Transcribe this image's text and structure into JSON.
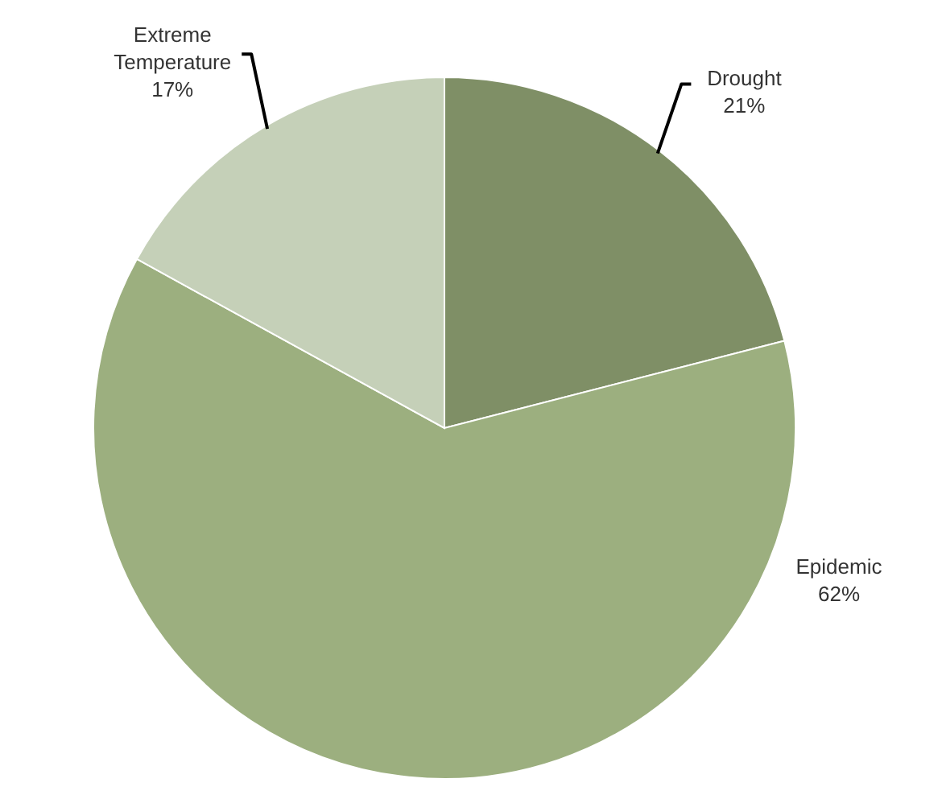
{
  "chart_data": {
    "type": "pie",
    "categories": [
      "Drought",
      "Epidemic",
      "Extreme Temperature"
    ],
    "values": [
      21,
      62,
      17
    ],
    "value_labels": [
      "21%",
      "62%",
      "17%"
    ],
    "colors": [
      "#7f8f66",
      "#9caf7f",
      "#c5d0b8"
    ]
  }
}
